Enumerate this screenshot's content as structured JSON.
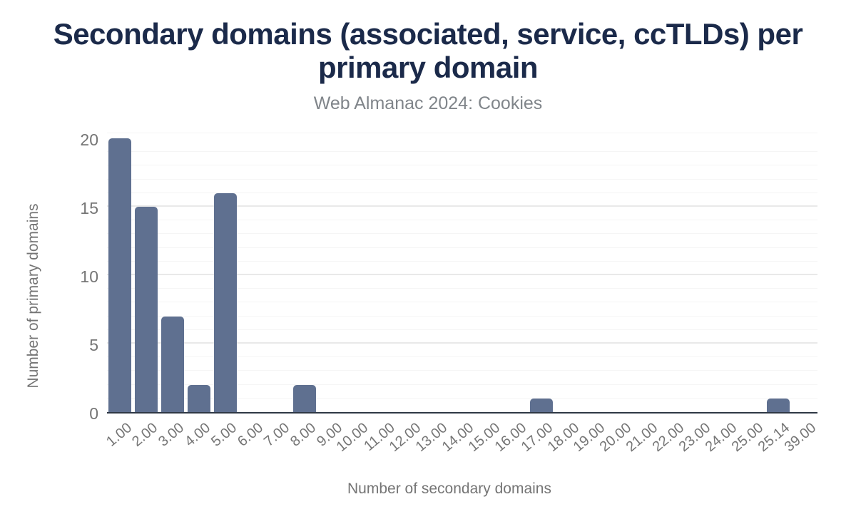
{
  "chart_data": {
    "type": "bar",
    "title": "Secondary domains (associated, service, ccTLDs) per primary domain",
    "subtitle": "Web Almanac 2024: Cookies",
    "xlabel": "Number of secondary domains",
    "ylabel": "Number of primary domains",
    "categories": [
      "1.00",
      "2.00",
      "3.00",
      "4.00",
      "5.00",
      "6.00",
      "7.00",
      "8.00",
      "9.00",
      "10.00",
      "11.00",
      "12.00",
      "13.00",
      "14.00",
      "15.00",
      "16.00",
      "17.00",
      "18.00",
      "19.00",
      "20.00",
      "21.00",
      "22.00",
      "23.00",
      "24.00",
      "25.00",
      "25.14",
      "39.00"
    ],
    "values": [
      20,
      15,
      7,
      2,
      16,
      0,
      0,
      2,
      0,
      0,
      0,
      0,
      0,
      0,
      0,
      0,
      1,
      0,
      0,
      0,
      0,
      0,
      0,
      0,
      0,
      1,
      0
    ],
    "ylim": [
      0,
      20
    ],
    "yticks": [
      0,
      5,
      10,
      15,
      20
    ],
    "grid": "horizontal minor lines every 1 unit, major lines every 5 units, no vertical grid",
    "legend": "none",
    "x_tick_rotation_deg": -40,
    "colors": {
      "bar": "#5f7090",
      "title": "#1b2a4a",
      "subtitle": "#80858a",
      "axis_text": "#757575",
      "baseline": "#2f3845",
      "grid_minor": "#f5f5f5",
      "grid_major": "#e9e9e9",
      "background": "#ffffff"
    }
  }
}
